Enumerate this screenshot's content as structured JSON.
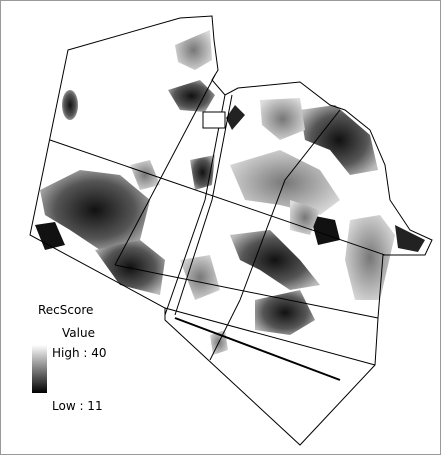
{
  "legend": {
    "title": "RecScore",
    "field": "Value",
    "high": "High : 40",
    "low": "Low : 11"
  }
}
